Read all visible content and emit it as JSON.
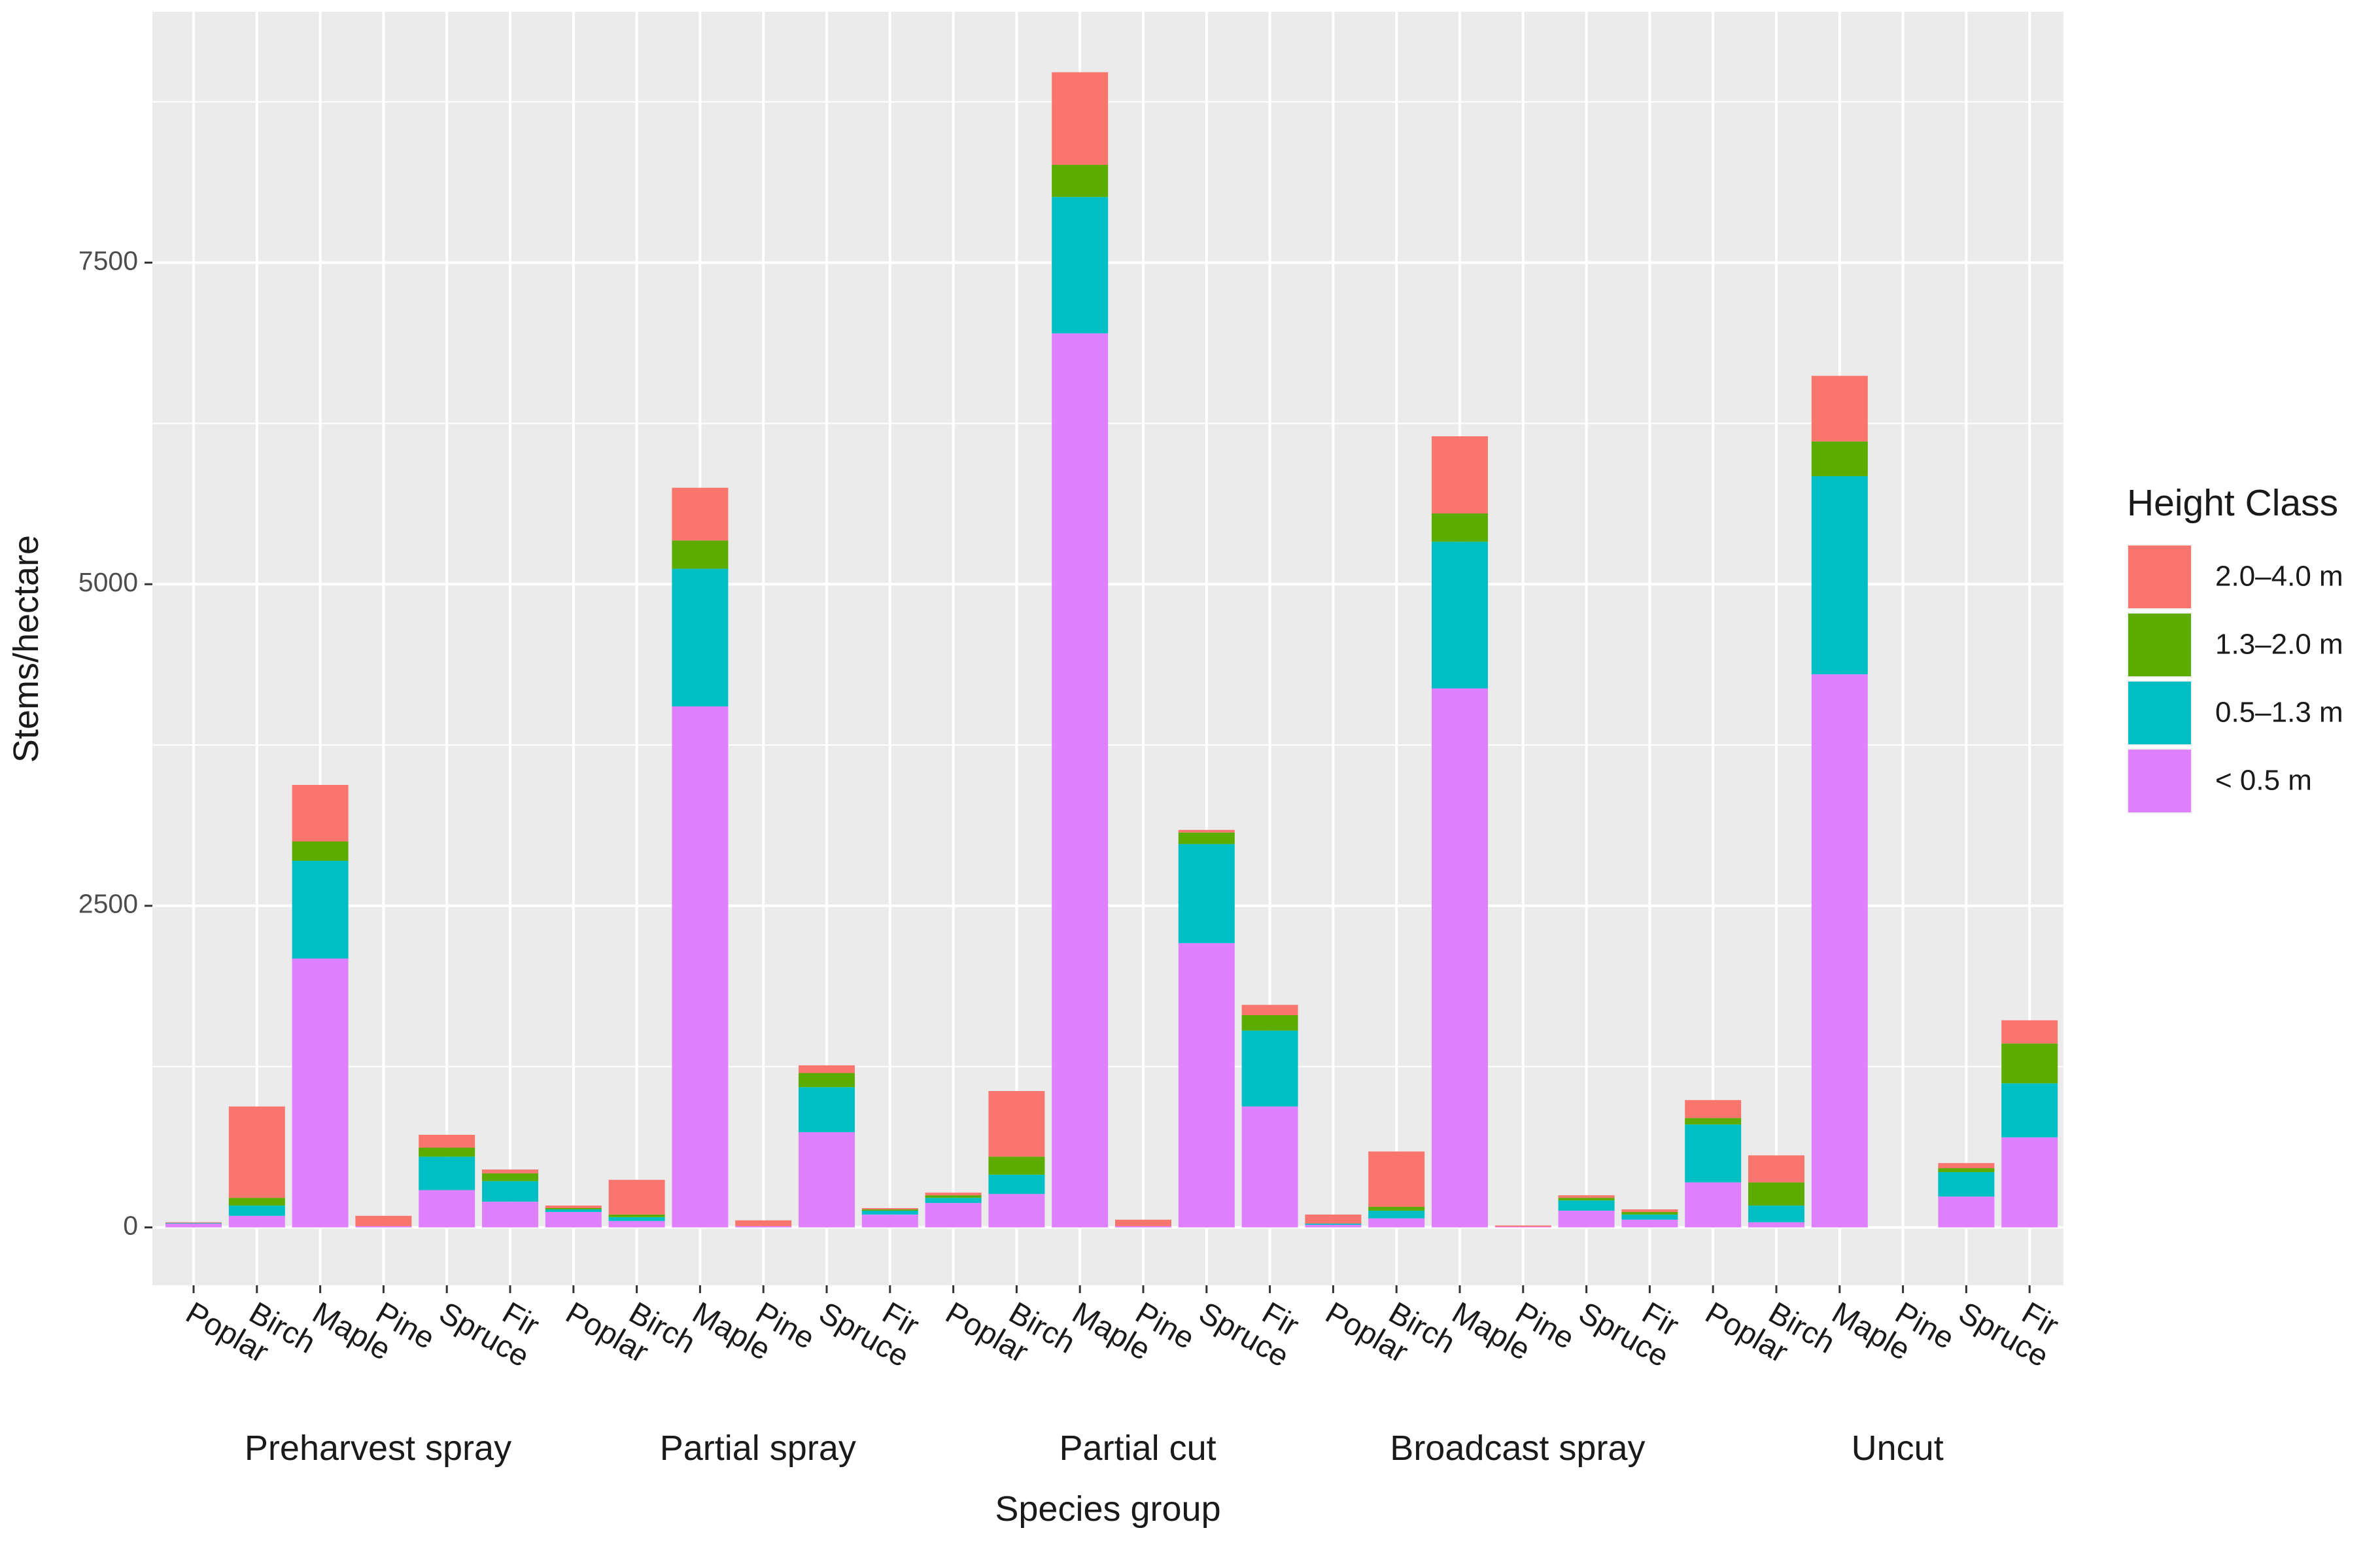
{
  "chart_data": {
    "type": "bar",
    "stacked": true,
    "xlabel": "Species group",
    "ylabel": "Stems/hectare",
    "ylim": [
      -450,
      9450
    ],
    "yticks": [
      0,
      2500,
      5000,
      7500
    ],
    "legend_title": "Height Class",
    "legend_position": "right",
    "stack_order": [
      "< 0.5 m",
      "0.5–1.3 m",
      "1.3–2.0 m",
      "2.0–4.0 m"
    ],
    "legend_order": [
      "2.0–4.0 m",
      "1.3–2.0 m",
      "0.5–1.3 m",
      "< 0.5 m"
    ],
    "colors": {
      "2.0–4.0 m": "#F8766D",
      "1.3–2.0 m": "#5CAC00",
      "0.5–1.3 m": "#00BFC4",
      "< 0.5 m": "#DF80FF"
    },
    "groups": [
      {
        "name": "Preharvest spray",
        "species": [
          {
            "name": "Poplar",
            "values": [
              30,
              5,
              0,
              5
            ]
          },
          {
            "name": "Birch",
            "values": [
              90,
              80,
              60,
              710
            ]
          },
          {
            "name": "Maple",
            "values": [
              2090,
              760,
              150,
              440
            ]
          },
          {
            "name": "Pine",
            "values": [
              10,
              0,
              0,
              80
            ]
          },
          {
            "name": "Spruce",
            "values": [
              290,
              260,
              70,
              100
            ]
          },
          {
            "name": "Fir",
            "values": [
              200,
              160,
              60,
              30
            ]
          }
        ]
      },
      {
        "name": "Partial spray",
        "species": [
          {
            "name": "Poplar",
            "values": [
              120,
              20,
              10,
              20
            ]
          },
          {
            "name": "Birch",
            "values": [
              50,
              30,
              20,
              270
            ]
          },
          {
            "name": "Maple",
            "values": [
              4050,
              1070,
              220,
              410
            ]
          },
          {
            "name": "Pine",
            "values": [
              10,
              0,
              0,
              45
            ]
          },
          {
            "name": "Spruce",
            "values": [
              740,
              350,
              110,
              60
            ]
          },
          {
            "name": "Fir",
            "values": [
              100,
              30,
              10,
              10
            ]
          }
        ]
      },
      {
        "name": "Partial cut",
        "species": [
          {
            "name": "Poplar",
            "values": [
              190,
              40,
              20,
              20
            ]
          },
          {
            "name": "Birch",
            "values": [
              260,
              150,
              140,
              510
            ]
          },
          {
            "name": "Maple",
            "values": [
              6950,
              1060,
              250,
              720
            ]
          },
          {
            "name": "Pine",
            "values": [
              10,
              0,
              0,
              50
            ]
          },
          {
            "name": "Spruce",
            "values": [
              2210,
              770,
              90,
              20
            ]
          },
          {
            "name": "Fir",
            "values": [
              940,
              590,
              120,
              80
            ]
          }
        ]
      },
      {
        "name": "Broadcast spray",
        "species": [
          {
            "name": "Poplar",
            "values": [
              20,
              10,
              0,
              70
            ]
          },
          {
            "name": "Birch",
            "values": [
              70,
              60,
              30,
              430
            ]
          },
          {
            "name": "Maple",
            "values": [
              4190,
              1140,
              220,
              600
            ]
          },
          {
            "name": "Pine",
            "values": [
              5,
              0,
              0,
              10
            ]
          },
          {
            "name": "Spruce",
            "values": [
              130,
              80,
              20,
              20
            ]
          },
          {
            "name": "Fir",
            "values": [
              60,
              40,
              20,
              20
            ]
          }
        ]
      },
      {
        "name": "Uncut",
        "species": [
          {
            "name": "Poplar",
            "values": [
              350,
              450,
              50,
              140
            ]
          },
          {
            "name": "Birch",
            "values": [
              40,
              130,
              180,
              210
            ]
          },
          {
            "name": "Maple",
            "values": [
              4300,
              1540,
              270,
              510
            ]
          },
          {
            "name": "Pine",
            "values": [
              0,
              0,
              0,
              0
            ]
          },
          {
            "name": "Spruce",
            "values": [
              240,
              190,
              30,
              40
            ]
          },
          {
            "name": "Fir",
            "values": [
              700,
              420,
              310,
              180
            ]
          }
        ]
      }
    ]
  }
}
